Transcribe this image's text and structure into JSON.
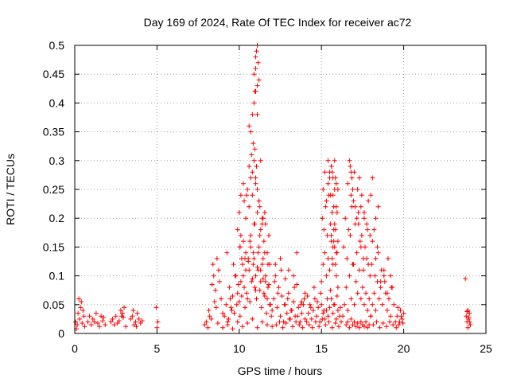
{
  "chart_data": {
    "type": "scatter",
    "title": "Day 169 of 2024, Rate Of TEC Index for receiver ac72",
    "xlabel": "GPS time / hours",
    "ylabel": "ROTI / TECUs",
    "xlim": [
      0,
      25
    ],
    "ylim": [
      0,
      0.5
    ],
    "xticks": [
      0,
      5,
      10,
      15,
      20,
      25
    ],
    "xtick_labels": [
      "0",
      "5",
      "10",
      "15",
      "20",
      "25"
    ],
    "yticks": [
      0,
      0.05,
      0.1,
      0.15,
      0.2,
      0.25,
      0.3,
      0.35,
      0.4,
      0.45,
      0.5
    ],
    "ytick_labels": [
      "0",
      "0.05",
      "0.1",
      "0.15",
      "0.2",
      "0.25",
      "0.3",
      "0.35",
      "0.4",
      "0.45",
      "0.5"
    ],
    "grid": true,
    "marker": "+",
    "color": "#ff0000",
    "series": [
      {
        "name": "ROTI",
        "x": [
          0.05,
          0.15,
          0.2,
          0.3,
          0.35,
          0.45,
          0.5,
          0.6,
          0.25,
          0.4,
          0.55,
          0.1,
          0.8,
          0.9,
          1.0,
          1.1,
          1.2,
          1.3,
          1.4,
          1.5,
          1.6,
          1.7,
          1.75,
          1.85,
          2.2,
          2.3,
          2.4,
          2.5,
          2.6,
          2.7,
          2.8,
          2.9,
          3.0,
          3.1,
          2.95,
          2.85,
          3.4,
          3.5,
          3.6,
          3.7,
          3.8,
          3.9,
          4.0,
          4.1,
          3.55,
          3.75,
          4.95,
          5.0,
          5.05,
          7.9,
          8.0,
          8.1,
          8.2,
          8.3,
          8.4,
          8.5,
          8.6,
          8.7,
          8.8,
          8.9,
          9.0,
          8.45,
          8.55,
          8.65,
          8.75,
          8.15,
          8.35,
          9.1,
          9.2,
          9.3,
          9.4,
          9.5,
          9.6,
          9.7,
          9.8,
          9.9,
          10.0,
          10.1,
          10.2,
          10.3,
          10.4,
          10.5,
          10.6,
          10.7,
          10.8,
          10.9,
          11.0,
          11.1,
          11.2,
          11.3,
          11.4,
          11.5,
          11.6,
          11.7,
          11.8,
          11.9,
          12.0,
          9.35,
          9.45,
          9.55,
          9.85,
          9.95,
          10.05,
          10.15,
          10.25,
          10.35,
          10.45,
          10.55,
          10.65,
          10.75,
          10.85,
          10.95,
          11.05,
          11.15,
          11.25,
          11.35,
          11.45,
          11.55,
          11.65,
          11.75,
          11.85,
          11.95,
          9.25,
          9.65,
          9.75,
          10.05,
          10.35,
          10.65,
          10.95,
          11.25,
          11.55,
          11.85,
          9.9,
          10.0,
          10.1,
          10.3,
          10.4,
          10.5,
          10.6,
          10.7,
          10.8,
          10.9,
          11.0,
          11.1,
          11.2,
          11.3,
          11.4,
          11.5,
          11.6,
          11.7,
          11.8,
          10.05,
          10.15,
          10.25,
          10.4,
          10.55,
          10.7,
          10.85,
          11.0,
          11.15,
          11.3,
          11.45,
          11.6,
          11.75,
          9.0,
          9.3,
          9.6,
          9.9,
          10.2,
          10.5,
          10.8,
          11.1,
          11.4,
          11.7,
          12.0,
          10.1,
          10.25,
          10.6,
          10.75,
          10.8,
          10.85,
          10.9,
          10.95,
          11.0,
          11.05,
          11.1,
          11.2,
          10.6,
          10.7,
          10.8,
          10.9,
          11.0,
          11.1,
          11.3,
          10.45,
          11.45,
          11.25,
          11.4,
          11.55,
          10.9,
          11.0,
          11.05,
          11.1,
          11.15,
          11.2,
          10.95,
          11.0,
          11.1,
          12.1,
          12.2,
          12.3,
          12.4,
          12.5,
          12.6,
          12.7,
          12.8,
          12.9,
          13.0,
          13.1,
          13.2,
          13.3,
          13.4,
          13.5,
          13.6,
          13.7,
          13.8,
          13.9,
          14.0,
          12.15,
          12.35,
          12.55,
          12.75,
          12.95,
          13.15,
          13.35,
          13.55,
          13.75,
          13.95,
          12.25,
          12.45,
          12.65,
          12.85,
          13.05,
          13.25,
          13.45,
          13.65,
          13.85,
          12.5,
          13.0,
          13.5,
          14.0,
          12.2,
          12.8,
          13.3,
          13.8,
          14.1,
          14.2,
          14.3,
          14.4,
          14.5,
          14.6,
          14.7,
          14.8,
          14.9,
          15.0,
          15.1,
          15.2,
          15.3,
          15.4,
          15.5,
          15.6,
          15.7,
          15.8,
          15.9,
          16.0,
          16.1,
          16.2,
          14.15,
          14.35,
          14.55,
          14.75,
          14.95,
          15.15,
          15.35,
          15.55,
          15.75,
          15.95,
          16.15,
          14.25,
          14.45,
          14.65,
          14.85,
          15.05,
          15.25,
          15.45,
          15.65,
          15.85,
          16.05,
          15.0,
          15.1,
          15.2,
          15.3,
          15.4,
          15.5,
          15.6,
          15.7,
          15.8,
          15.9,
          16.0,
          15.05,
          15.15,
          15.25,
          15.35,
          15.45,
          15.55,
          15.65,
          15.75,
          15.85,
          15.95,
          15.1,
          15.3,
          15.5,
          15.7,
          15.9,
          15.2,
          15.4,
          15.6,
          15.8,
          15.4,
          15.5,
          15.6,
          15.7,
          15.8,
          15.9,
          16.0,
          15.55,
          15.65,
          15.75,
          15.85,
          15.95,
          15.6,
          15.7,
          15.8,
          15.9,
          16.0,
          15.65,
          15.75,
          15.85,
          16.3,
          16.4,
          16.5,
          16.6,
          16.7,
          16.8,
          16.9,
          17.0,
          17.1,
          17.2,
          17.3,
          17.4,
          17.5,
          17.6,
          17.7,
          17.8,
          17.9,
          18.0,
          16.35,
          16.55,
          16.75,
          16.95,
          17.15,
          17.35,
          17.55,
          17.75,
          17.95,
          16.45,
          16.65,
          16.85,
          17.05,
          17.25,
          17.45,
          17.65,
          17.85,
          16.5,
          16.6,
          16.7,
          16.8,
          16.9,
          17.0,
          17.1,
          17.2,
          17.3,
          17.4,
          17.5,
          17.6,
          17.7,
          17.8,
          17.9,
          16.6,
          16.8,
          17.0,
          17.2,
          17.4,
          17.6,
          17.8,
          16.7,
          16.75,
          16.8,
          16.85,
          16.9,
          16.95,
          17.05,
          17.15,
          17.25,
          17.3,
          17.45,
          17.6,
          17.75,
          17.85,
          17.95,
          17.4,
          17.55,
          18.0,
          18.1,
          18.2,
          18.3,
          18.4,
          18.5,
          18.6,
          18.7,
          18.8,
          18.9,
          19.0,
          19.1,
          19.2,
          19.3,
          19.4,
          18.05,
          18.25,
          18.45,
          18.65,
          18.85,
          19.05,
          19.25,
          18.15,
          18.35,
          18.55,
          18.75,
          18.95,
          19.15,
          19.35,
          18.1,
          18.2,
          18.3,
          18.4,
          18.6,
          18.8,
          19.0,
          19.2,
          18.0,
          18.1,
          18.3,
          18.45,
          19.5,
          19.6,
          19.7,
          19.8,
          19.9,
          20.0,
          19.55,
          19.65,
          19.75,
          19.85,
          19.95,
          23.8,
          23.85,
          23.9,
          23.95,
          24.0,
          24.05,
          23.9,
          24.0,
          23.85,
          23.95,
          23.75
        ],
        "y": [
          0.02,
          0.015,
          0.035,
          0.025,
          0.045,
          0.018,
          0.04,
          0.012,
          0.06,
          0.055,
          0.03,
          0.008,
          0.02,
          0.03,
          0.015,
          0.025,
          0.02,
          0.035,
          0.018,
          0.012,
          0.03,
          0.022,
          0.028,
          0.015,
          0.02,
          0.025,
          0.015,
          0.03,
          0.018,
          0.022,
          0.04,
          0.035,
          0.045,
          0.012,
          0.028,
          0.03,
          0.025,
          0.03,
          0.015,
          0.02,
          0.035,
          0.025,
          0.018,
          0.022,
          0.04,
          0.012,
          0.045,
          0.01,
          0.02,
          0.015,
          0.02,
          0.01,
          0.03,
          0.025,
          0.12,
          0.055,
          0.045,
          0.018,
          0.09,
          0.06,
          0.035,
          0.1,
          0.075,
          0.13,
          0.11,
          0.04,
          0.085,
          0.03,
          0.05,
          0.02,
          0.08,
          0.045,
          0.065,
          0.035,
          0.1,
          0.07,
          0.055,
          0.09,
          0.12,
          0.08,
          0.14,
          0.06,
          0.11,
          0.17,
          0.095,
          0.13,
          0.075,
          0.115,
          0.15,
          0.09,
          0.12,
          0.07,
          0.1,
          0.06,
          0.085,
          0.05,
          0.04,
          0.025,
          0.06,
          0.04,
          0.05,
          0.085,
          0.03,
          0.065,
          0.1,
          0.045,
          0.07,
          0.125,
          0.055,
          0.09,
          0.14,
          0.08,
          0.06,
          0.11,
          0.075,
          0.045,
          0.095,
          0.065,
          0.035,
          0.08,
          0.05,
          0.03,
          0.14,
          0.12,
          0.1,
          0.15,
          0.13,
          0.16,
          0.19,
          0.17,
          0.14,
          0.12,
          0.18,
          0.21,
          0.17,
          0.23,
          0.2,
          0.25,
          0.22,
          0.27,
          0.24,
          0.19,
          0.26,
          0.21,
          0.23,
          0.18,
          0.2,
          0.16,
          0.19,
          0.14,
          0.17,
          0.15,
          0.13,
          0.16,
          0.11,
          0.13,
          0.15,
          0.12,
          0.1,
          0.14,
          0.11,
          0.13,
          0.09,
          0.12,
          0.01,
          0.015,
          0.008,
          0.02,
          0.012,
          0.018,
          0.025,
          0.01,
          0.02,
          0.015,
          0.012,
          0.24,
          0.26,
          0.29,
          0.31,
          0.28,
          0.33,
          0.3,
          0.32,
          0.27,
          0.29,
          0.25,
          0.23,
          0.36,
          0.35,
          0.38,
          0.4,
          0.42,
          0.38,
          0.3,
          0.24,
          0.2,
          0.22,
          0.19,
          0.21,
          0.45,
          0.46,
          0.49,
          0.5,
          0.47,
          0.44,
          0.42,
          0.48,
          0.43,
          0.06,
          0.1,
          0.045,
          0.08,
          0.03,
          0.065,
          0.02,
          0.05,
          0.035,
          0.07,
          0.025,
          0.04,
          0.055,
          0.03,
          0.14,
          0.045,
          0.02,
          0.035,
          0.05,
          0.025,
          0.09,
          0.07,
          0.11,
          0.05,
          0.06,
          0.04,
          0.08,
          0.03,
          0.05,
          0.06,
          0.015,
          0.02,
          0.01,
          0.018,
          0.025,
          0.012,
          0.02,
          0.015,
          0.01,
          0.13,
          0.11,
          0.085,
          0.07,
          0.12,
          0.095,
          0.1,
          0.055,
          0.02,
          0.035,
          0.05,
          0.025,
          0.04,
          0.06,
          0.03,
          0.045,
          0.02,
          0.05,
          0.035,
          0.025,
          0.04,
          0.03,
          0.045,
          0.06,
          0.035,
          0.05,
          0.025,
          0.04,
          0.03,
          0.02,
          0.065,
          0.045,
          0.08,
          0.055,
          0.07,
          0.04,
          0.06,
          0.075,
          0.05,
          0.065,
          0.045,
          0.015,
          0.01,
          0.02,
          0.012,
          0.025,
          0.015,
          0.02,
          0.01,
          0.018,
          0.012,
          0.09,
          0.12,
          0.14,
          0.1,
          0.13,
          0.11,
          0.16,
          0.12,
          0.15,
          0.1,
          0.08,
          0.2,
          0.18,
          0.22,
          0.17,
          0.24,
          0.19,
          0.21,
          0.16,
          0.18,
          0.14,
          0.25,
          0.23,
          0.27,
          0.24,
          0.22,
          0.28,
          0.26,
          0.29,
          0.25,
          0.3,
          0.28,
          0.29,
          0.27,
          0.3,
          0.26,
          0.25,
          0.24,
          0.28,
          0.22,
          0.27,
          0.21,
          0.17,
          0.15,
          0.19,
          0.14,
          0.16,
          0.13,
          0.18,
          0.12,
          0.03,
          0.05,
          0.08,
          0.04,
          0.1,
          0.06,
          0.12,
          0.05,
          0.09,
          0.07,
          0.11,
          0.06,
          0.08,
          0.05,
          0.07,
          0.04,
          0.06,
          0.03,
          0.15,
          0.13,
          0.17,
          0.12,
          0.14,
          0.16,
          0.11,
          0.13,
          0.1,
          0.2,
          0.18,
          0.22,
          0.19,
          0.21,
          0.17,
          0.15,
          0.12,
          0.015,
          0.02,
          0.01,
          0.025,
          0.015,
          0.02,
          0.012,
          0.018,
          0.01,
          0.02,
          0.015,
          0.012,
          0.02,
          0.01,
          0.015,
          0.26,
          0.24,
          0.28,
          0.25,
          0.22,
          0.2,
          0.18,
          0.3,
          0.29,
          0.28,
          0.27,
          0.25,
          0.23,
          0.22,
          0.2,
          0.19,
          0.27,
          0.24,
          0.21,
          0.19,
          0.23,
          0.17,
          0.15,
          0.13,
          0.03,
          0.05,
          0.07,
          0.04,
          0.09,
          0.06,
          0.08,
          0.05,
          0.1,
          0.07,
          0.04,
          0.06,
          0.03,
          0.08,
          0.05,
          0.12,
          0.1,
          0.14,
          0.11,
          0.09,
          0.13,
          0.08,
          0.015,
          0.02,
          0.01,
          0.018,
          0.012,
          0.02,
          0.015,
          0.16,
          0.18,
          0.13,
          0.15,
          0.09,
          0.11,
          0.07,
          0.1,
          0.24,
          0.27,
          0.2,
          0.22,
          0.02,
          0.03,
          0.015,
          0.04,
          0.025,
          0.035,
          0.01,
          0.045,
          0.02,
          0.03,
          0.018,
          0.03,
          0.02,
          0.04,
          0.025,
          0.035,
          0.015,
          0.01,
          0.02,
          0.038,
          0.028,
          0.095
        ]
      }
    ]
  }
}
